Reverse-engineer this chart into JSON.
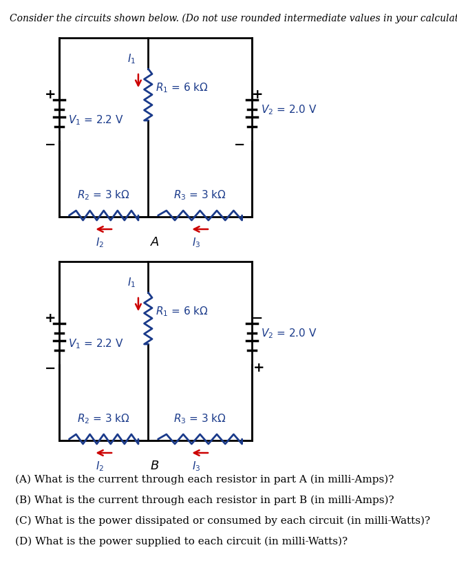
{
  "title": "Consider the circuits shown below. (Do not use rounded intermediate values in your calculations)",
  "circuit_A": {
    "V1": "2.2 V",
    "V2": "2.0 V",
    "R1": "6 kΩ",
    "R2": "3 kΩ",
    "R3": "3 kΩ",
    "label": "A"
  },
  "circuit_B": {
    "V1": "2.2 V",
    "V2": "2.0 V",
    "R1": "6 kΩ",
    "R2": "3 kΩ",
    "R3": "3 kΩ",
    "label": "B"
  },
  "questions": [
    "(A) What is the current through each resistor in part A (in milli-Amps)?",
    "(B) What is the current through each resistor in part B (in milli-Amps)?",
    "(C) What is the power dissipated or consumed by each circuit (in milli-Watts)?",
    "(D) What is the power supplied to each circuit (in milli-Watts)?"
  ],
  "colors": {
    "circuit_lines": "#000000",
    "resistor_zigzag": "#1a3a8a",
    "resistor_bottom": "#1a3a8a",
    "arrow_current": "#cc0000",
    "battery_lines": "#000000",
    "text_blue": "#1a3a8a",
    "text_black": "#000000",
    "background": "#ffffff"
  }
}
